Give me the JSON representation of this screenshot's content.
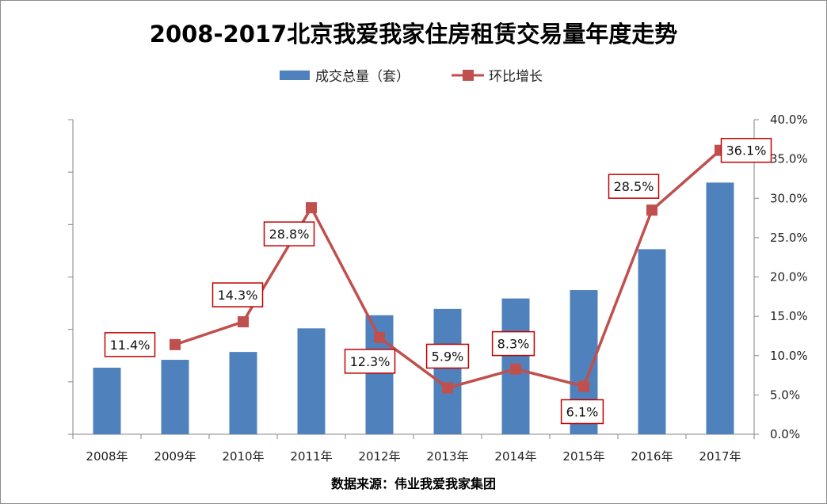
{
  "chart_data": {
    "type": "bar+line",
    "title": "2008-2017北京我爱我家住房租赁交易量年度走势",
    "categories": [
      "2008年",
      "2009年",
      "2010年",
      "2011年",
      "2012年",
      "2013年",
      "2014年",
      "2015年",
      "2016年",
      "2017年"
    ],
    "series": [
      {
        "name": "成交总量（套）",
        "type": "bar",
        "axis": "left",
        "values": [
          1.27,
          1.42,
          1.57,
          2.02,
          2.27,
          2.39,
          2.59,
          2.75,
          3.53,
          4.8
        ],
        "color": "#4f81bd"
      },
      {
        "name": "环比增长",
        "type": "line",
        "axis": "right",
        "values": [
          null,
          11.4,
          14.3,
          28.8,
          12.3,
          5.9,
          8.3,
          6.1,
          28.5,
          36.1
        ],
        "labels": [
          "",
          "11.4%",
          "14.3%",
          "28.8%",
          "12.3%",
          "5.9%",
          "8.3%",
          "6.1%",
          "28.5%",
          "36.1%"
        ],
        "color": "#c0504d"
      }
    ],
    "y_left": {
      "min": 0,
      "max": 6,
      "show_labels": false
    },
    "y_right": {
      "min": 0,
      "max": 40,
      "ticks": [
        "0.0%",
        "5.0%",
        "10.0%",
        "15.0%",
        "20.0%",
        "25.0%",
        "30.0%",
        "35.0%",
        "40.0%"
      ]
    },
    "grid": false,
    "legend_position": "top"
  },
  "source": "数据来源：伟业我爱我家集团"
}
